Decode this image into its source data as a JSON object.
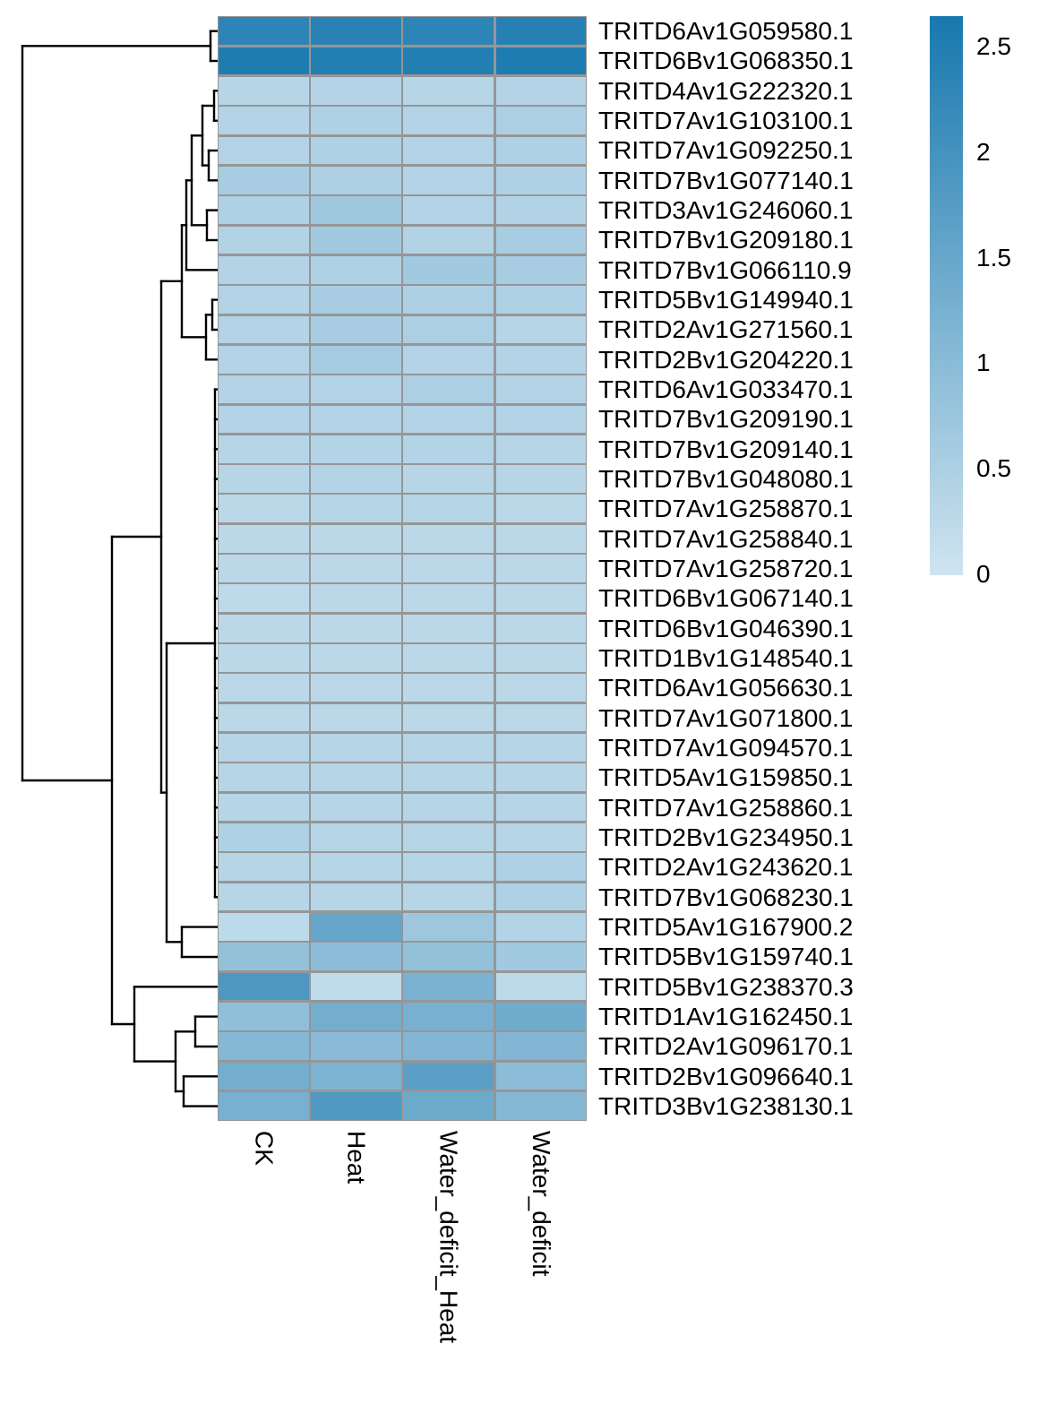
{
  "figure": {
    "background": "#ffffff",
    "grid_line_color": "#969696",
    "dendrogram_color": "#000000",
    "text_color": "#000000"
  },
  "chart_data": {
    "type": "heatmap",
    "title": "",
    "xlabel": "",
    "ylabel": "",
    "legend_position": "right",
    "columns": [
      "CK",
      "Heat",
      "Water_deficit_Heat",
      "Water_deficit"
    ],
    "rows": [
      "TRITD6Av1G059580.1",
      "TRITD6Bv1G068350.1",
      "TRITD4Av1G222320.1",
      "TRITD7Av1G103100.1",
      "TRITD7Av1G092250.1",
      "TRITD7Bv1G077140.1",
      "TRITD3Av1G246060.1",
      "TRITD7Bv1G209180.1",
      "TRITD7Bv1G066110.9",
      "TRITD5Bv1G149940.1",
      "TRITD2Av1G271560.1",
      "TRITD2Bv1G204220.1",
      "TRITD6Av1G033470.1",
      "TRITD7Bv1G209190.1",
      "TRITD7Bv1G209140.1",
      "TRITD7Bv1G048080.1",
      "TRITD7Av1G258870.1",
      "TRITD7Av1G258840.1",
      "TRITD7Av1G258720.1",
      "TRITD6Bv1G067140.1",
      "TRITD6Bv1G046390.1",
      "TRITD1Bv1G148540.1",
      "TRITD6Av1G056630.1",
      "TRITD7Av1G071800.1",
      "TRITD7Av1G094570.1",
      "TRITD5Av1G159850.1",
      "TRITD7Av1G258860.1",
      "TRITD2Bv1G234950.1",
      "TRITD2Av1G243620.1",
      "TRITD7Bv1G068230.1",
      "TRITD5Av1G167900.2",
      "TRITD5Bv1G159740.1",
      "TRITD5Bv1G238370.3",
      "TRITD1Av1G162450.1",
      "TRITD2Av1G096170.1",
      "TRITD2Bv1G096640.1",
      "TRITD3Bv1G238130.1"
    ],
    "values": [
      [
        2.3,
        2.35,
        2.3,
        2.4
      ],
      [
        2.5,
        2.45,
        2.45,
        2.5
      ],
      [
        0.35,
        0.4,
        0.35,
        0.4
      ],
      [
        0.4,
        0.45,
        0.4,
        0.5
      ],
      [
        0.4,
        0.45,
        0.4,
        0.45
      ],
      [
        0.55,
        0.5,
        0.4,
        0.45
      ],
      [
        0.45,
        0.68,
        0.4,
        0.42
      ],
      [
        0.42,
        0.65,
        0.42,
        0.55
      ],
      [
        0.4,
        0.45,
        0.65,
        0.55
      ],
      [
        0.4,
        0.55,
        0.5,
        0.45
      ],
      [
        0.4,
        0.55,
        0.5,
        0.35
      ],
      [
        0.4,
        0.6,
        0.4,
        0.4
      ],
      [
        0.4,
        0.4,
        0.5,
        0.4
      ],
      [
        0.4,
        0.4,
        0.4,
        0.4
      ],
      [
        0.35,
        0.4,
        0.4,
        0.35
      ],
      [
        0.35,
        0.4,
        0.35,
        0.35
      ],
      [
        0.3,
        0.35,
        0.35,
        0.3
      ],
      [
        0.3,
        0.3,
        0.3,
        0.3
      ],
      [
        0.3,
        0.3,
        0.3,
        0.3
      ],
      [
        0.25,
        0.3,
        0.3,
        0.3
      ],
      [
        0.3,
        0.3,
        0.3,
        0.3
      ],
      [
        0.3,
        0.3,
        0.3,
        0.3
      ],
      [
        0.3,
        0.3,
        0.3,
        0.3
      ],
      [
        0.3,
        0.3,
        0.3,
        0.3
      ],
      [
        0.35,
        0.35,
        0.35,
        0.35
      ],
      [
        0.35,
        0.35,
        0.35,
        0.35
      ],
      [
        0.35,
        0.35,
        0.35,
        0.35
      ],
      [
        0.45,
        0.35,
        0.35,
        0.35
      ],
      [
        0.35,
        0.35,
        0.35,
        0.45
      ],
      [
        0.35,
        0.35,
        0.35,
        0.45
      ],
      [
        0.25,
        1.5,
        0.7,
        0.4
      ],
      [
        0.85,
        0.95,
        0.85,
        0.65
      ],
      [
        1.85,
        0.22,
        1.2,
        0.25
      ],
      [
        0.9,
        1.3,
        1.25,
        1.35
      ],
      [
        1.05,
        1.0,
        1.1,
        1.1
      ],
      [
        1.3,
        1.15,
        1.65,
        0.95
      ],
      [
        1.25,
        1.8,
        1.4,
        1.05
      ]
    ],
    "colormap": {
      "low": "#cfe4f0",
      "high": "#1878ae",
      "vmin": 0,
      "vmax": 2.6
    },
    "legend": {
      "tick_labels": [
        "2.5",
        "2",
        "1.5",
        "1",
        "0.5",
        "0"
      ],
      "tick_values": [
        2.5,
        2,
        1.5,
        1,
        0.5,
        0
      ]
    },
    "row_dendrogram": true,
    "dendrogram_segments": [
      [
        235,
        34.7,
        235,
        68.0
      ],
      [
        235,
        34.7,
        243,
        34.7
      ],
      [
        235,
        68.0,
        243,
        68.0
      ],
      [
        25,
        51.3,
        25,
        871.0
      ],
      [
        25,
        51.3,
        235,
        51.3
      ],
      [
        25,
        871.0,
        125,
        871.0
      ],
      [
        125,
        599.0,
        125,
        1143.0
      ],
      [
        125,
        599.0,
        180,
        599.0
      ],
      [
        125,
        1143.0,
        150,
        1143.0
      ],
      [
        180,
        313.8,
        180,
        884.6
      ],
      [
        180,
        313.8,
        203,
        313.8
      ],
      [
        180,
        884.6,
        186,
        884.6
      ],
      [
        186,
        718.0,
        186,
        1051.3
      ],
      [
        186,
        718.0,
        240,
        718.0
      ],
      [
        186,
        1051.3,
        203,
        1051.3
      ],
      [
        203,
        1034.6,
        203,
        1068.0
      ],
      [
        203,
        1034.6,
        243,
        1034.6
      ],
      [
        203,
        1068.0,
        243,
        1068.0
      ],
      [
        203,
        251.3,
        203,
        376.3
      ],
      [
        203,
        251.3,
        208,
        251.3
      ],
      [
        203,
        376.3,
        230,
        376.3
      ],
      [
        208,
        201.3,
        208,
        301.3
      ],
      [
        208,
        201.3,
        214,
        201.3
      ],
      [
        208,
        301.3,
        243,
        301.3
      ],
      [
        214,
        151.3,
        214,
        251.3
      ],
      [
        214,
        151.3,
        226,
        151.3
      ],
      [
        214,
        251.3,
        231,
        251.3
      ],
      [
        226,
        118.0,
        226,
        184.6
      ],
      [
        226,
        118.0,
        239,
        118.0
      ],
      [
        226,
        184.6,
        233,
        184.6
      ],
      [
        239,
        101.3,
        239,
        134.7
      ],
      [
        239,
        101.3,
        243,
        101.3
      ],
      [
        239,
        134.7,
        243,
        134.7
      ],
      [
        233,
        168.0,
        233,
        201.3
      ],
      [
        233,
        168.0,
        243,
        168.0
      ],
      [
        233,
        201.3,
        243,
        201.3
      ],
      [
        231,
        234.6,
        231,
        268.0
      ],
      [
        231,
        234.6,
        243,
        234.6
      ],
      [
        231,
        268.0,
        243,
        268.0
      ],
      [
        237,
        334.6,
        237,
        368.0
      ],
      [
        237,
        334.6,
        243,
        334.6
      ],
      [
        237,
        368.0,
        243,
        368.0
      ],
      [
        230,
        351.3,
        230,
        401.3
      ],
      [
        230,
        351.3,
        237,
        351.3
      ],
      [
        230,
        401.3,
        243,
        401.3
      ],
      [
        240,
        434.6,
        240,
        1001.3
      ],
      [
        240,
        434.6,
        243,
        434.6
      ],
      [
        240,
        468.0,
        243,
        468.0
      ],
      [
        240,
        501.3,
        243,
        501.3
      ],
      [
        240,
        534.6,
        243,
        534.6
      ],
      [
        240,
        568.0,
        243,
        568.0
      ],
      [
        240,
        601.3,
        243,
        601.3
      ],
      [
        240,
        634.6,
        243,
        634.6
      ],
      [
        240,
        668.0,
        243,
        668.0
      ],
      [
        240,
        701.3,
        243,
        701.3
      ],
      [
        240,
        734.6,
        243,
        734.6
      ],
      [
        240,
        768.0,
        243,
        768.0
      ],
      [
        240,
        801.3,
        243,
        801.3
      ],
      [
        240,
        834.6,
        243,
        834.6
      ],
      [
        240,
        868.0,
        243,
        868.0
      ],
      [
        240,
        901.3,
        243,
        901.3
      ],
      [
        240,
        934.6,
        243,
        934.6
      ],
      [
        240,
        968.0,
        243,
        968.0
      ],
      [
        240,
        1001.3,
        243,
        1001.3
      ],
      [
        150,
        1101.3,
        150,
        1184.6
      ],
      [
        150,
        1101.3,
        243,
        1101.3
      ],
      [
        150,
        1184.6,
        196,
        1184.6
      ],
      [
        196,
        1151.3,
        196,
        1218.0
      ],
      [
        196,
        1151.3,
        218,
        1151.3
      ],
      [
        196,
        1218.0,
        205,
        1218.0
      ],
      [
        218,
        1134.6,
        218,
        1168.0
      ],
      [
        218,
        1134.6,
        243,
        1134.6
      ],
      [
        218,
        1168.0,
        243,
        1168.0
      ],
      [
        205,
        1201.3,
        205,
        1234.6
      ],
      [
        205,
        1201.3,
        243,
        1201.3
      ],
      [
        205,
        1234.6,
        243,
        1234.6
      ]
    ]
  }
}
